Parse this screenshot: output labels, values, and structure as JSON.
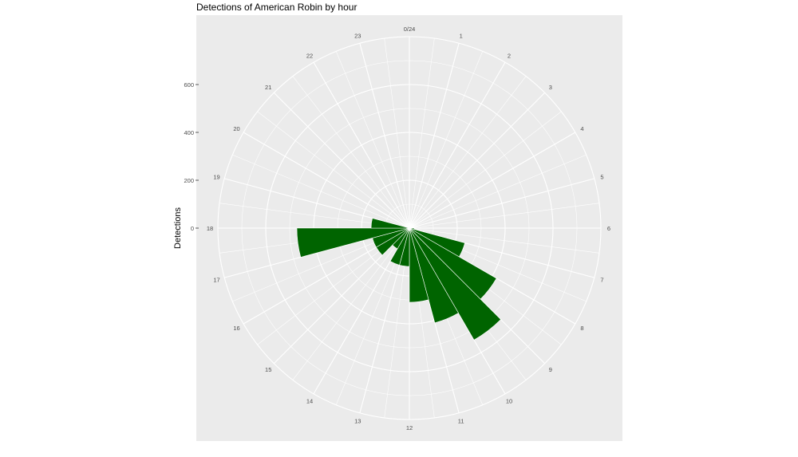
{
  "chart_data": {
    "type": "bar",
    "coordinate_system": "polar",
    "title": "Detections of American Robin by hour",
    "xlabel": "",
    "ylabel": "Detections",
    "categories": [
      "0",
      "1",
      "2",
      "3",
      "4",
      "5",
      "6",
      "7",
      "8",
      "9",
      "10",
      "11",
      "12",
      "13",
      "14",
      "15",
      "16",
      "17",
      "18",
      "19",
      "20",
      "21",
      "22",
      "23"
    ],
    "angle_labels": [
      "0/24",
      "1",
      "2",
      "3",
      "4",
      "5",
      "6",
      "7",
      "8",
      "9",
      "10",
      "11",
      "12",
      "13",
      "14",
      "15",
      "16",
      "17",
      "18",
      "19",
      "20",
      "21",
      "22",
      "23"
    ],
    "y_ticks": [
      "0",
      "200",
      "400",
      "600"
    ],
    "ylim": [
      0,
      800
    ],
    "values": [
      0,
      0,
      0,
      0,
      0,
      0,
      20,
      240,
      420,
      540,
      410,
      310,
      160,
      160,
      100,
      160,
      160,
      470,
      160,
      0,
      0,
      0,
      0,
      0
    ],
    "bar_color": "#006400",
    "panel_background": "#ebebeb",
    "grid_color": "#ffffff",
    "grid": true,
    "legend": "none"
  }
}
